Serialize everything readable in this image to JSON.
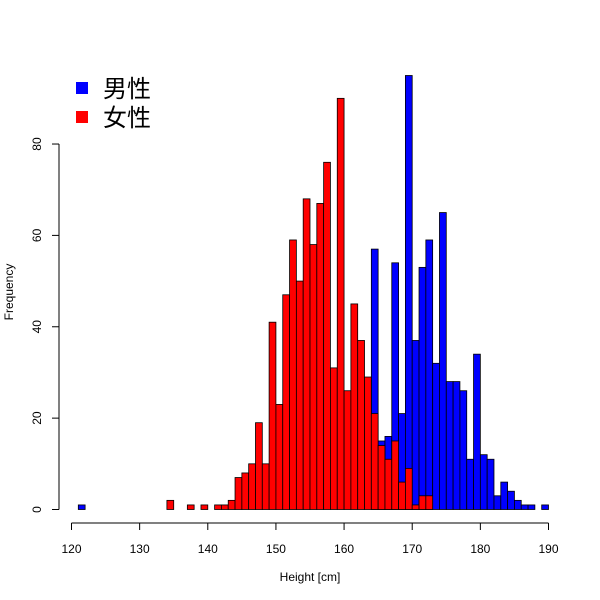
{
  "chart_data": {
    "type": "bar",
    "title": "",
    "xlabel": "Height [cm]",
    "ylabel": "Frequency",
    "xlim": [
      120,
      190
    ],
    "ylim": [
      0,
      95
    ],
    "x_ticks": [
      120,
      130,
      140,
      150,
      160,
      170,
      180,
      190
    ],
    "y_ticks": [
      0,
      20,
      40,
      60,
      80
    ],
    "bin_width": 1,
    "grid": false,
    "legend_position": "top-left",
    "series": [
      {
        "name": "男性",
        "color": "#0000ff",
        "bins": [
          {
            "x": 121,
            "value": 1
          },
          {
            "x": 164,
            "value": 57
          },
          {
            "x": 165,
            "value": 15
          },
          {
            "x": 166,
            "value": 16
          },
          {
            "x": 167,
            "value": 54
          },
          {
            "x": 168,
            "value": 21
          },
          {
            "x": 169,
            "value": 95
          },
          {
            "x": 170,
            "value": 37
          },
          {
            "x": 171,
            "value": 53
          },
          {
            "x": 172,
            "value": 59
          },
          {
            "x": 173,
            "value": 32
          },
          {
            "x": 174,
            "value": 65
          },
          {
            "x": 175,
            "value": 28
          },
          {
            "x": 176,
            "value": 28
          },
          {
            "x": 177,
            "value": 26
          },
          {
            "x": 178,
            "value": 11
          },
          {
            "x": 179,
            "value": 34
          },
          {
            "x": 180,
            "value": 12
          },
          {
            "x": 181,
            "value": 11
          },
          {
            "x": 182,
            "value": 3
          },
          {
            "x": 183,
            "value": 6
          },
          {
            "x": 184,
            "value": 4
          },
          {
            "x": 185,
            "value": 2
          },
          {
            "x": 186,
            "value": 1
          },
          {
            "x": 187,
            "value": 1
          },
          {
            "x": 189,
            "value": 1
          }
        ]
      },
      {
        "name": "女性",
        "color": "#ff0000",
        "bins": [
          {
            "x": 134,
            "value": 2
          },
          {
            "x": 137,
            "value": 1
          },
          {
            "x": 139,
            "value": 1
          },
          {
            "x": 141,
            "value": 1
          },
          {
            "x": 142,
            "value": 1
          },
          {
            "x": 143,
            "value": 2
          },
          {
            "x": 144,
            "value": 7
          },
          {
            "x": 145,
            "value": 8
          },
          {
            "x": 146,
            "value": 10
          },
          {
            "x": 147,
            "value": 19
          },
          {
            "x": 148,
            "value": 10
          },
          {
            "x": 149,
            "value": 41
          },
          {
            "x": 150,
            "value": 23
          },
          {
            "x": 151,
            "value": 47
          },
          {
            "x": 152,
            "value": 59
          },
          {
            "x": 153,
            "value": 50
          },
          {
            "x": 154,
            "value": 68
          },
          {
            "x": 155,
            "value": 58
          },
          {
            "x": 156,
            "value": 67
          },
          {
            "x": 157,
            "value": 76
          },
          {
            "x": 158,
            "value": 31
          },
          {
            "x": 159,
            "value": 90
          },
          {
            "x": 160,
            "value": 26
          },
          {
            "x": 161,
            "value": 45
          },
          {
            "x": 162,
            "value": 37
          },
          {
            "x": 163,
            "value": 29
          },
          {
            "x": 164,
            "value": 21
          },
          {
            "x": 165,
            "value": 14
          },
          {
            "x": 166,
            "value": 11
          },
          {
            "x": 167,
            "value": 15
          },
          {
            "x": 168,
            "value": 6
          },
          {
            "x": 169,
            "value": 9
          },
          {
            "x": 170,
            "value": 1
          },
          {
            "x": 171,
            "value": 3
          },
          {
            "x": 172,
            "value": 3
          }
        ]
      }
    ]
  }
}
